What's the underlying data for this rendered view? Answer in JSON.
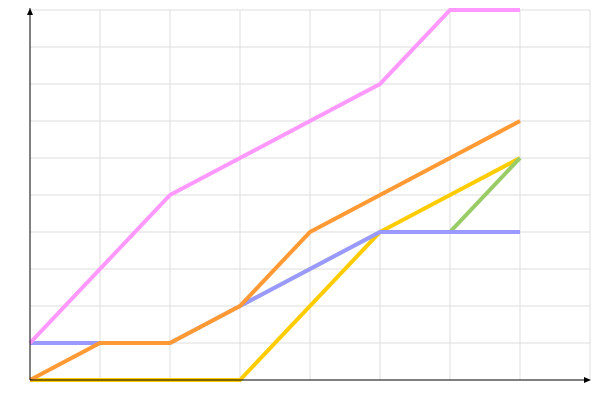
{
  "chart_data": {
    "type": "line",
    "title": "",
    "xlabel": "",
    "ylabel": "",
    "x": [
      0,
      1,
      2,
      3,
      4,
      5,
      6,
      7
    ],
    "xlim": [
      0,
      8
    ],
    "ylim": [
      0,
      10
    ],
    "grid": true,
    "legend": "none",
    "series": [
      {
        "color": "#ffcc00",
        "values": [
          0,
          0,
          0,
          0,
          2,
          4,
          5,
          6
        ]
      },
      {
        "color": "#99cc66",
        "values": [
          1,
          1,
          1,
          2,
          3,
          4,
          4,
          6
        ]
      },
      {
        "color": "#9999ff",
        "values": [
          1,
          1,
          1,
          2,
          3,
          4,
          4,
          4
        ]
      },
      {
        "color": "#ff9933",
        "values": [
          0,
          1,
          1,
          2,
          4,
          5,
          6,
          7
        ]
      },
      {
        "color": "#ff99ff",
        "values": [
          1,
          3,
          5,
          6,
          7,
          8,
          10,
          10
        ]
      }
    ]
  }
}
